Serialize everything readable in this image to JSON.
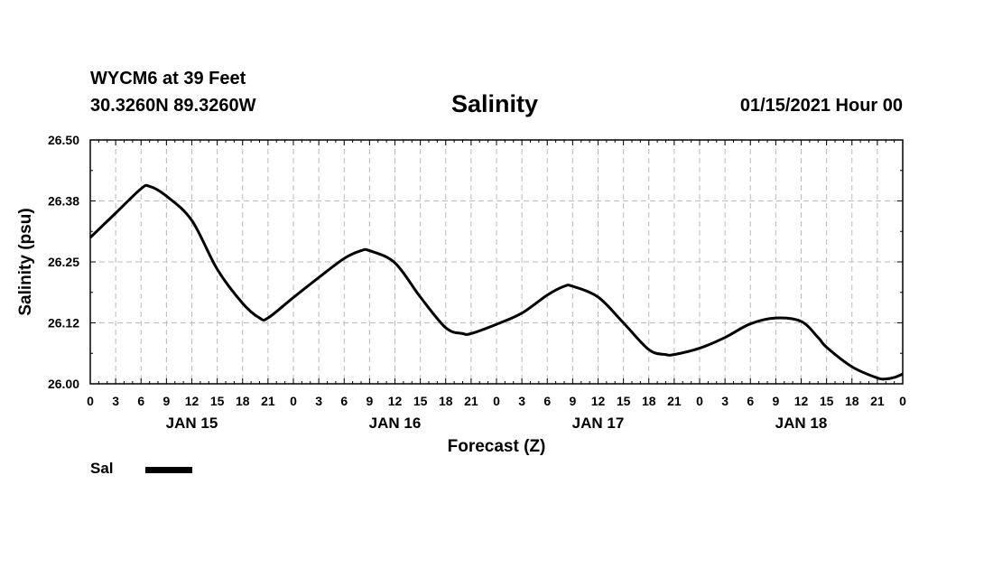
{
  "header": {
    "station": "WYCM6 at 39 Feet",
    "coords": "30.3260N 89.3260W",
    "timestamp": "01/15/2021 Hour 00"
  },
  "legend": {
    "label": "Sal",
    "color": "#000000"
  },
  "chart_data": {
    "type": "line",
    "title": "Salinity",
    "xlabel": "Forecast (Z)",
    "ylabel": "Salinity (psu)",
    "ylim": [
      26.0,
      26.5
    ],
    "xlim": [
      0,
      96
    ],
    "grid": true,
    "legend_position": "bottom-left",
    "y_ticks": [
      26.0,
      26.125,
      26.25,
      26.375,
      26.5
    ],
    "y_tick_labels": [
      "26.00",
      "26.12",
      "26.25",
      "26.38",
      "26.50"
    ],
    "x_ticks": [
      0,
      3,
      6,
      9,
      12,
      15,
      18,
      21,
      24,
      27,
      30,
      33,
      36,
      39,
      42,
      45,
      48,
      51,
      54,
      57,
      60,
      63,
      66,
      69,
      72,
      75,
      78,
      81,
      84,
      87,
      90,
      93,
      96
    ],
    "x_tick_labels": [
      "0",
      "3",
      "6",
      "9",
      "12",
      "15",
      "18",
      "21",
      "0",
      "3",
      "6",
      "9",
      "12",
      "15",
      "18",
      "21",
      "0",
      "3",
      "6",
      "9",
      "12",
      "15",
      "18",
      "21",
      "0",
      "3",
      "6",
      "9",
      "12",
      "15",
      "18",
      "21",
      "0"
    ],
    "day_labels": [
      {
        "hour": 12,
        "label": "JAN 15"
      },
      {
        "hour": 36,
        "label": "JAN 16"
      },
      {
        "hour": 60,
        "label": "JAN 17"
      },
      {
        "hour": 84,
        "label": "JAN 18"
      }
    ],
    "series": [
      {
        "name": "Sal",
        "x": [
          0,
          3,
          6,
          7,
          9,
          12,
          15,
          18,
          20,
          21,
          24,
          27,
          30,
          32,
          33,
          36,
          39,
          42,
          44,
          45,
          48,
          51,
          54,
          56,
          57,
          60,
          63,
          66,
          68,
          69,
          72,
          75,
          78,
          81,
          84,
          86,
          87,
          90,
          93,
          94,
          95,
          96
        ],
        "values": [
          26.3,
          26.35,
          26.4,
          26.405,
          26.385,
          26.335,
          26.235,
          26.165,
          26.135,
          26.135,
          26.177,
          26.218,
          26.257,
          26.273,
          26.273,
          26.248,
          26.178,
          26.115,
          26.103,
          26.103,
          26.122,
          26.145,
          26.182,
          26.2,
          26.2,
          26.178,
          26.125,
          26.07,
          26.06,
          26.06,
          26.073,
          26.095,
          26.123,
          26.135,
          26.128,
          26.095,
          26.075,
          26.035,
          26.012,
          26.01,
          26.013,
          26.02
        ]
      }
    ]
  }
}
